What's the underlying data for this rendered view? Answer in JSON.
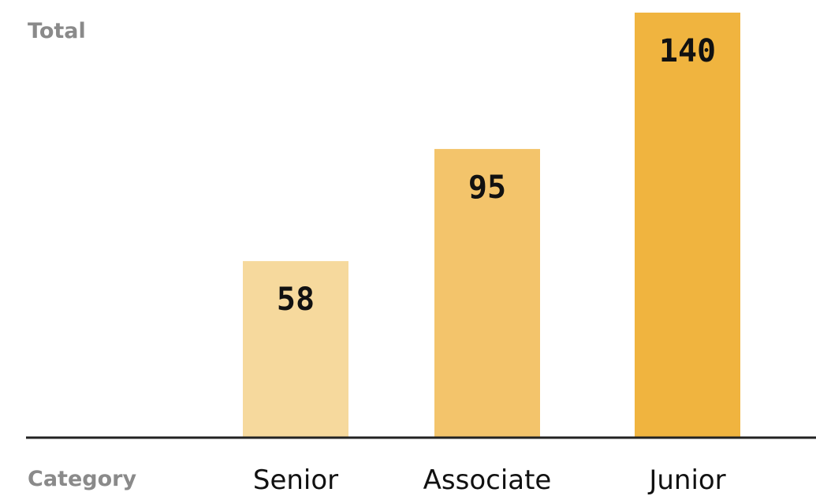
{
  "chart_data": {
    "type": "bar",
    "ylabel": "Total",
    "xlabel": "Category",
    "categories": [
      "Senior",
      "Associate",
      "Junior"
    ],
    "values": [
      58,
      95,
      140
    ],
    "value_labels": [
      "58",
      "95",
      "140"
    ],
    "colors": [
      "#F6D99D",
      "#F3C46B",
      "#F0B43F"
    ],
    "baseline_color": "#222222",
    "ylim": [
      0,
      140
    ],
    "grid": false,
    "legend": "none"
  }
}
